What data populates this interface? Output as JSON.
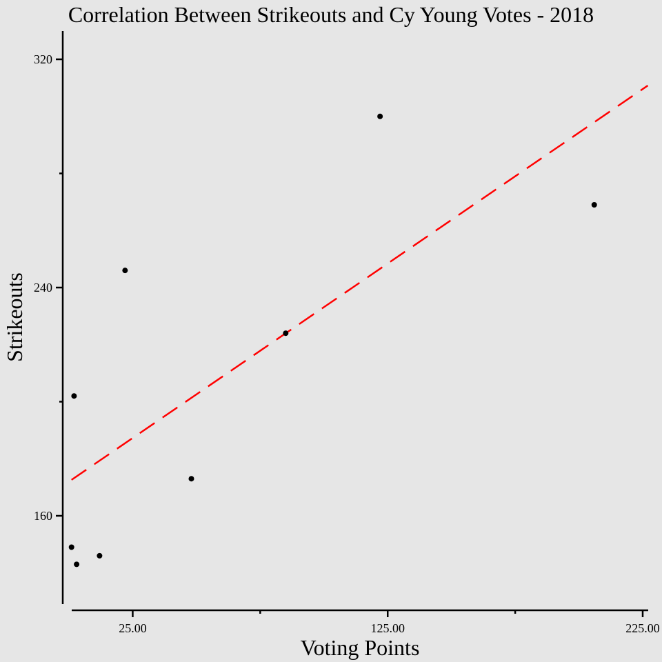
{
  "chart_data": {
    "type": "scatter",
    "title": "Correlation Between Strikeouts and Cy Young Votes - 2018",
    "xlabel": "Voting Points",
    "ylabel": "Strikeouts",
    "xlim": [
      0,
      227
    ],
    "ylim": [
      129,
      329
    ],
    "x_ticks": [
      {
        "value": 25,
        "label": "25.00"
      },
      {
        "value": 75,
        "label": ""
      },
      {
        "value": 125,
        "label": "125.00"
      },
      {
        "value": 175,
        "label": ""
      },
      {
        "value": 225,
        "label": "225.00"
      }
    ],
    "y_ticks": [
      {
        "value": 160,
        "label": "160"
      },
      {
        "value": 200,
        "label": ""
      },
      {
        "value": 240,
        "label": "240"
      },
      {
        "value": 280,
        "label": ""
      },
      {
        "value": 320,
        "label": "320"
      }
    ],
    "series": [
      {
        "points": [
          {
            "x": 1,
            "y": 149
          },
          {
            "x": 2,
            "y": 202
          },
          {
            "x": 3,
            "y": 143
          },
          {
            "x": 12,
            "y": 146
          },
          {
            "x": 22,
            "y": 246
          },
          {
            "x": 48,
            "y": 173
          },
          {
            "x": 85,
            "y": 224
          },
          {
            "x": 122,
            "y": 300
          },
          {
            "x": 206,
            "y": 269
          }
        ]
      }
    ],
    "trendline": {
      "x": [
        1,
        227
      ],
      "y": [
        172.6,
        310.8
      ],
      "style": "dashed"
    },
    "colors": {
      "points": "#000000",
      "trendline": "#ff0000",
      "background": "#e6e6e6"
    },
    "grid": false,
    "legend": "none"
  }
}
